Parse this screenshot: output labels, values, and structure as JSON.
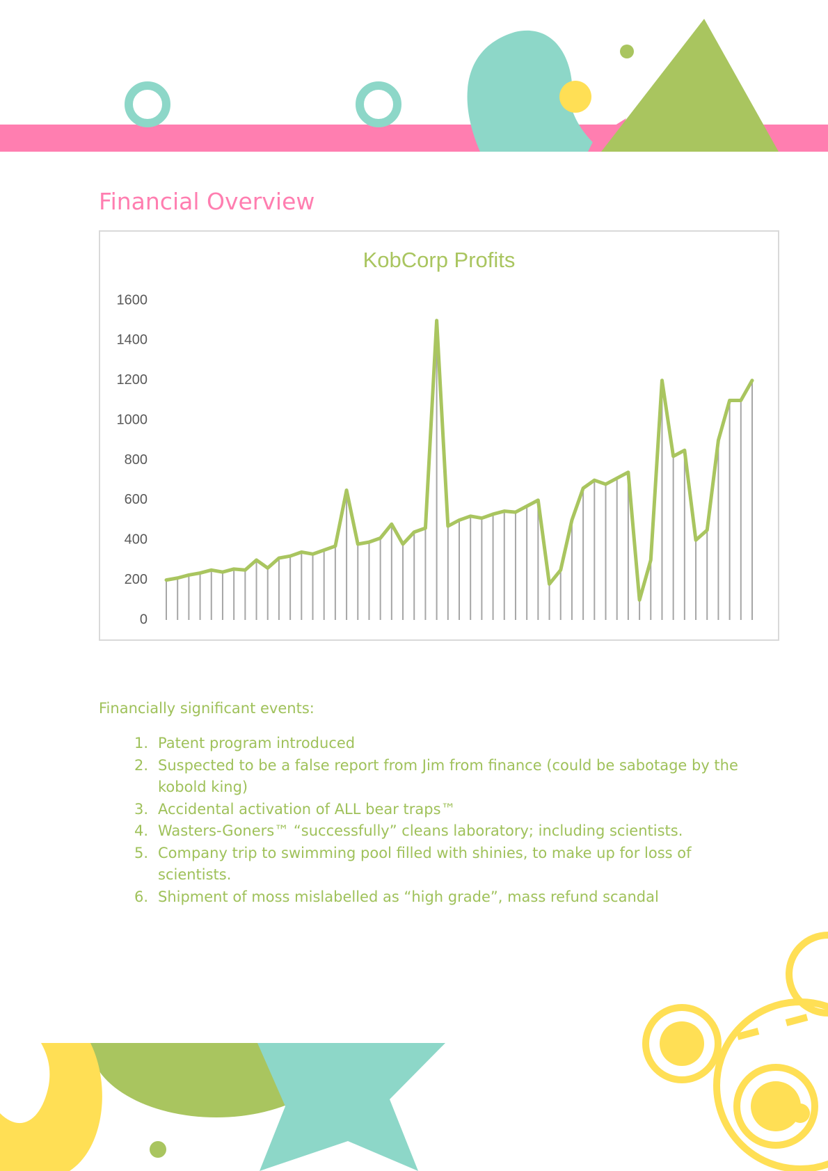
{
  "heading": "Financial Overview",
  "chart_data": {
    "type": "line",
    "title": "KobCorp Profits",
    "color": "#a9c55f",
    "drop_lines": true,
    "values": [
      200,
      210,
      225,
      235,
      250,
      240,
      255,
      250,
      300,
      260,
      310,
      320,
      340,
      330,
      350,
      370,
      650,
      380,
      390,
      410,
      480,
      380,
      440,
      460,
      1500,
      470,
      500,
      520,
      510,
      530,
      545,
      540,
      570,
      600,
      180,
      250,
      500,
      660,
      700,
      680,
      710,
      740,
      100,
      300,
      1200,
      820,
      850,
      400,
      450,
      900,
      1100,
      1100,
      1200
    ],
    "ylim": [
      0,
      1600
    ],
    "yticks": [
      0,
      200,
      400,
      600,
      800,
      1000,
      1200,
      1400,
      1600
    ]
  },
  "events": {
    "intro": "Financially significant events:",
    "items": [
      {
        "number": "1.",
        "text": "Patent program introduced"
      },
      {
        "number": "2.",
        "text": "Suspected to be a false report from Jim from finance (could be sabotage by the kobold king)"
      },
      {
        "number": "3.",
        "text": "Accidental activation of ALL bear traps™"
      },
      {
        "number": "4.",
        "text": "Wasters-Goners™ “successfully” cleans laboratory; including scientists."
      },
      {
        "number": "5.",
        "text": "Company trip to swimming pool filled with shinies, to make up for loss of scientists."
      },
      {
        "number": "6.",
        "text": "Shipment of moss mislabelled as “high grade”, mass refund scandal"
      }
    ]
  }
}
